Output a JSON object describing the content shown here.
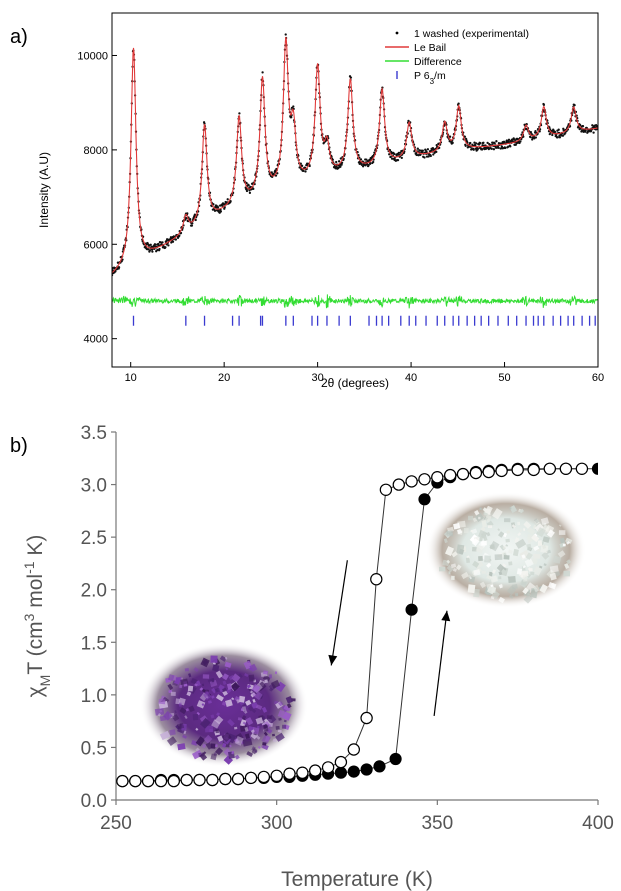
{
  "chart_data": [
    {
      "type": "line",
      "panel_label": "a)",
      "xlabel": "2θ (degrees)",
      "ylabel": "Intensity (A.U)",
      "xlim": [
        8,
        60
      ],
      "ylim": [
        3400,
        10900
      ],
      "x_ticks": [
        "10",
        "20",
        "30",
        "40",
        "50",
        "60"
      ],
      "y_ticks": [
        "4000",
        "6000",
        "8000",
        "10000"
      ],
      "legend_position": "top-right",
      "legend": [
        {
          "label": "1 washed (experimental)",
          "color": "#000000",
          "marker": "dot"
        },
        {
          "label": "Le Bail",
          "color": "#e03a3a",
          "marker": "line"
        },
        {
          "label": "Difference",
          "color": "#33dd33",
          "marker": "line"
        },
        {
          "label": "P 63/m",
          "color": "#3a3ad0",
          "marker": "bar"
        }
      ],
      "background_curve": [
        [
          8,
          5300
        ],
        [
          12,
          5750
        ],
        [
          16,
          6200
        ],
        [
          20,
          6650
        ],
        [
          24,
          6950
        ],
        [
          28,
          7250
        ],
        [
          32,
          7450
        ],
        [
          36,
          7600
        ],
        [
          40,
          7800
        ],
        [
          44,
          7950
        ],
        [
          48,
          8050
        ],
        [
          52,
          8150
        ],
        [
          56,
          8300
        ],
        [
          60,
          8450
        ]
      ],
      "peaks": [
        {
          "x": 10.3,
          "y": 10150
        },
        {
          "x": 15.9,
          "y": 6550
        },
        {
          "x": 17.9,
          "y": 8500
        },
        {
          "x": 21.6,
          "y": 8650
        },
        {
          "x": 24.1,
          "y": 9450
        },
        {
          "x": 26.6,
          "y": 10150
        },
        {
          "x": 27.4,
          "y": 8350
        },
        {
          "x": 30.0,
          "y": 9700
        },
        {
          "x": 31.0,
          "y": 8000
        },
        {
          "x": 33.5,
          "y": 9450
        },
        {
          "x": 36.9,
          "y": 9250
        },
        {
          "x": 39.8,
          "y": 8550
        },
        {
          "x": 43.6,
          "y": 8550
        },
        {
          "x": 45.1,
          "y": 8900
        },
        {
          "x": 52.3,
          "y": 8500
        },
        {
          "x": 54.2,
          "y": 8900
        },
        {
          "x": 57.4,
          "y": 8900
        }
      ],
      "difference_baseline": 4800,
      "reflection_marks_y": 4380,
      "reflection_positions": [
        10.3,
        15.9,
        17.9,
        20.9,
        21.6,
        23.9,
        24.1,
        26.6,
        27.4,
        29.4,
        30.0,
        31.0,
        32.3,
        33.5,
        35.5,
        36.3,
        36.9,
        37.6,
        38.9,
        39.8,
        40.5,
        41.6,
        42.8,
        43.6,
        44.5,
        45.1,
        46.0,
        46.8,
        47.5,
        48.3,
        49.3,
        50.4,
        51.3,
        52.3,
        53.1,
        53.6,
        54.2,
        55.2,
        56.0,
        56.8,
        57.4,
        58.3,
        59.1,
        59.7
      ]
    },
    {
      "type": "scatter",
      "panel_label": "b)",
      "xlabel": "Temperature (K)",
      "ylabel": "χMT (cm3 mol-1 K)",
      "ylabel_parts": {
        "chi": "χ",
        "sub_m": "M",
        "t": "T (cm",
        "sup_3": "3",
        "mol": " mol",
        "sup_neg1": "-1",
        "k": " K)"
      },
      "xlim": [
        250,
        400
      ],
      "ylim": [
        0,
        3.5
      ],
      "x_ticks": [
        "250",
        "300",
        "350",
        "400"
      ],
      "y_ticks": [
        "0.0",
        "0.5",
        "1.0",
        "1.5",
        "2.0",
        "2.5",
        "3.0",
        "3.5"
      ],
      "series": [
        {
          "marker": "filled",
          "x": [
            252,
            256,
            260,
            264,
            268,
            272,
            276,
            280,
            284,
            288,
            292,
            296,
            300,
            304,
            308,
            312,
            316,
            320,
            324,
            328,
            332,
            337,
            342,
            346,
            350,
            354,
            358,
            362,
            366,
            370,
            375,
            380,
            385,
            390,
            400
          ],
          "y": [
            0.18,
            0.18,
            0.18,
            0.19,
            0.19,
            0.19,
            0.19,
            0.19,
            0.2,
            0.2,
            0.21,
            0.21,
            0.22,
            0.22,
            0.23,
            0.24,
            0.25,
            0.26,
            0.27,
            0.29,
            0.32,
            0.39,
            1.81,
            2.86,
            3.02,
            3.07,
            3.1,
            3.12,
            3.13,
            3.14,
            3.15,
            3.15,
            3.15,
            3.15,
            3.15
          ]
        },
        {
          "marker": "open",
          "x": [
            252,
            256,
            260,
            264,
            268,
            272,
            276,
            280,
            284,
            288,
            292,
            296,
            300,
            304,
            308,
            312,
            316,
            320,
            324,
            328,
            331,
            334,
            338,
            342,
            346,
            350,
            354,
            358,
            362,
            366,
            370,
            375,
            380,
            385,
            390,
            395
          ],
          "y": [
            0.18,
            0.18,
            0.18,
            0.18,
            0.18,
            0.19,
            0.19,
            0.19,
            0.2,
            0.2,
            0.21,
            0.22,
            0.23,
            0.25,
            0.26,
            0.28,
            0.31,
            0.36,
            0.48,
            0.78,
            2.1,
            2.95,
            3.0,
            3.03,
            3.05,
            3.07,
            3.09,
            3.1,
            3.11,
            3.12,
            3.13,
            3.14,
            3.14,
            3.15,
            3.15,
            3.15
          ]
        }
      ],
      "arrows": [
        {
          "direction": "down",
          "x_start": 322,
          "y_start": 2.28,
          "x_end": 317,
          "y_end": 1.28
        },
        {
          "direction": "up",
          "x_start": 349,
          "y_start": 0.8,
          "x_end": 353,
          "y_end": 1.8
        }
      ],
      "photos": [
        {
          "name": "purple-crystals-photo",
          "color": "#5e2a86"
        },
        {
          "name": "white-crystals-photo",
          "color": "#e4ece8"
        }
      ]
    }
  ]
}
